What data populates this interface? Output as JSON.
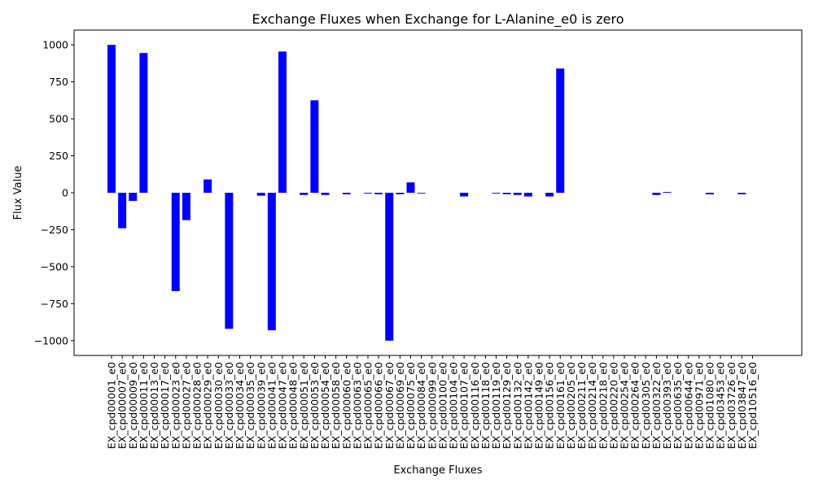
{
  "chart_data": {
    "type": "bar",
    "title": "Exchange Fluxes when Exchange for L-Alanine_e0 is zero",
    "xlabel": "Exchange Fluxes",
    "ylabel": "Flux Value",
    "ylim": [
      -1100,
      1100
    ],
    "yticks": [
      -1000,
      -750,
      -500,
      -250,
      0,
      250,
      500,
      750,
      1000
    ],
    "ytick_labels": [
      "−1000",
      "−750",
      "−500",
      "−250",
      "0",
      "250",
      "500",
      "750",
      "1000"
    ],
    "grid": false,
    "bar_color": "#0000ff",
    "categories": [
      "EX_cpd00001_e0",
      "EX_cpd00007_e0",
      "EX_cpd00009_e0",
      "EX_cpd00011_e0",
      "EX_cpd00013_e0",
      "EX_cpd00017_e0",
      "EX_cpd00023_e0",
      "EX_cpd00027_e0",
      "EX_cpd00028_e0",
      "EX_cpd00029_e0",
      "EX_cpd00030_e0",
      "EX_cpd00033_e0",
      "EX_cpd00034_e0",
      "EX_cpd00035_e0",
      "EX_cpd00039_e0",
      "EX_cpd00041_e0",
      "EX_cpd00047_e0",
      "EX_cpd00048_e0",
      "EX_cpd00051_e0",
      "EX_cpd00053_e0",
      "EX_cpd00054_e0",
      "EX_cpd00058_e0",
      "EX_cpd00060_e0",
      "EX_cpd00063_e0",
      "EX_cpd00065_e0",
      "EX_cpd00066_e0",
      "EX_cpd00067_e0",
      "EX_cpd00069_e0",
      "EX_cpd00075_e0",
      "EX_cpd00084_e0",
      "EX_cpd00099_e0",
      "EX_cpd00100_e0",
      "EX_cpd00104_e0",
      "EX_cpd00107_e0",
      "EX_cpd00116_e0",
      "EX_cpd00118_e0",
      "EX_cpd00119_e0",
      "EX_cpd00129_e0",
      "EX_cpd00132_e0",
      "EX_cpd00142_e0",
      "EX_cpd00149_e0",
      "EX_cpd00156_e0",
      "EX_cpd00161_e0",
      "EX_cpd00205_e0",
      "EX_cpd00211_e0",
      "EX_cpd00214_e0",
      "EX_cpd00218_e0",
      "EX_cpd00220_e0",
      "EX_cpd00254_e0",
      "EX_cpd00264_e0",
      "EX_cpd00305_e0",
      "EX_cpd00322_e0",
      "EX_cpd00393_e0",
      "EX_cpd00635_e0",
      "EX_cpd00644_e0",
      "EX_cpd00971_e0",
      "EX_cpd01080_e0",
      "EX_cpd03453_e0",
      "EX_cpd03726_e0",
      "EX_cpd03847_e0",
      "EX_cpd10516_e0"
    ],
    "values": [
      1000,
      -240,
      -55,
      945,
      0,
      0,
      -665,
      -185,
      0,
      90,
      0,
      -920,
      0,
      0,
      -20,
      -930,
      955,
      0,
      -15,
      625,
      -15,
      0,
      -10,
      0,
      -5,
      -10,
      -1000,
      -10,
      70,
      -5,
      0,
      0,
      0,
      -25,
      0,
      0,
      -5,
      -10,
      -15,
      -25,
      0,
      -25,
      840,
      0,
      0,
      0,
      0,
      0,
      0,
      0,
      0,
      -15,
      5,
      0,
      0,
      0,
      -10,
      0,
      0,
      -10,
      0
    ]
  }
}
